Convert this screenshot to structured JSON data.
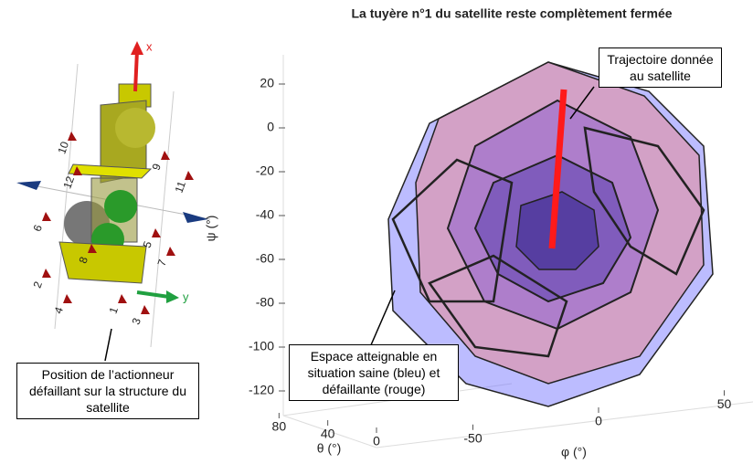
{
  "chart_data": {
    "type": "polytope3d",
    "title": "La tuyère n°1 du satellite reste complètement fermée",
    "zlabel": "ψ (°)",
    "xlabel": "φ (°)",
    "ylabel": "θ (°)",
    "zlim": [
      -130,
      30
    ],
    "zticks": [
      20,
      0,
      -20,
      -40,
      -60,
      -80,
      -100,
      -120
    ],
    "xlim": [
      -80,
      80
    ],
    "xticks": [
      -50,
      0,
      50
    ],
    "ylim": [
      0,
      90
    ],
    "yticks": [
      80,
      40,
      0
    ],
    "annotations": [
      "Trajectoire donnée au satellite",
      "Espace atteignable en situation saine (bleu) et défaillante (rouge)"
    ]
  },
  "illustration": {
    "axis_labels": [
      "x",
      "y"
    ],
    "actuator_labels": [
      "1",
      "2",
      "3",
      "4",
      "5",
      "6",
      "7",
      "8",
      "9",
      "10",
      "11",
      "12"
    ],
    "caption": "Position de l’actionneur défaillant sur la structure du satellite"
  }
}
